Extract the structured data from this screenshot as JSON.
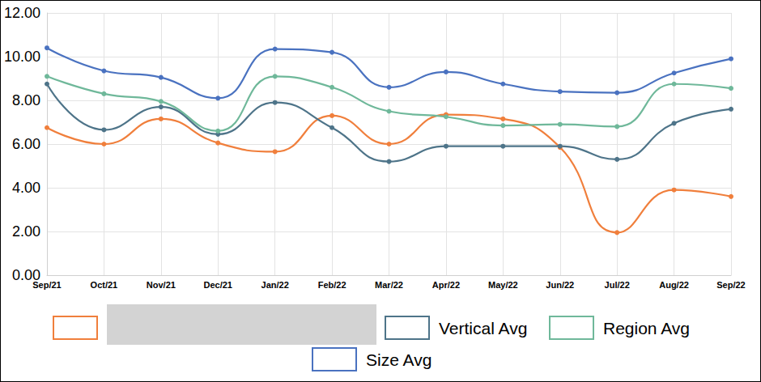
{
  "chart_data": {
    "type": "line",
    "categories": [
      "Sep/21",
      "Oct/21",
      "Nov/21",
      "Dec/21",
      "Jan/22",
      "Feb/22",
      "Mar/22",
      "Apr/22",
      "May/22",
      "Jun/22",
      "Jul/22",
      "Aug/22",
      "Sep/22"
    ],
    "series": [
      {
        "name": null,
        "color": "#f07f3c",
        "values": [
          6.75,
          6.0,
          7.15,
          6.05,
          5.65,
          7.3,
          6.0,
          7.35,
          7.15,
          5.85,
          1.95,
          3.9,
          3.6
        ]
      },
      {
        "name": "Vertical Avg",
        "color": "#4e7489",
        "values": [
          8.75,
          6.65,
          7.7,
          6.45,
          7.9,
          6.75,
          5.2,
          5.9,
          5.9,
          5.9,
          5.3,
          6.95,
          7.6
        ]
      },
      {
        "name": "Region Avg",
        "color": "#6fb89a",
        "values": [
          9.1,
          8.3,
          7.95,
          6.6,
          9.1,
          8.6,
          7.5,
          7.25,
          6.85,
          6.9,
          6.8,
          8.75,
          8.55
        ]
      },
      {
        "name": "Size Avg",
        "color": "#4a72c0",
        "values": [
          10.4,
          9.35,
          9.05,
          8.1,
          10.35,
          10.2,
          8.6,
          9.3,
          8.75,
          8.4,
          8.35,
          9.25,
          9.9
        ]
      }
    ],
    "ylim": [
      0,
      12
    ],
    "yticks": [
      {
        "value": 0,
        "label": "0.00"
      },
      {
        "value": 2,
        "label": "2.00"
      },
      {
        "value": 4,
        "label": "4.00"
      },
      {
        "value": 6,
        "label": "6.00"
      },
      {
        "value": 8,
        "label": "8.00"
      },
      {
        "value": 10,
        "label": "10.00"
      },
      {
        "value": 12,
        "label": "12.00"
      }
    ],
    "grid": true,
    "legend": "bottom",
    "marker": "circle",
    "line_style": "solid"
  }
}
